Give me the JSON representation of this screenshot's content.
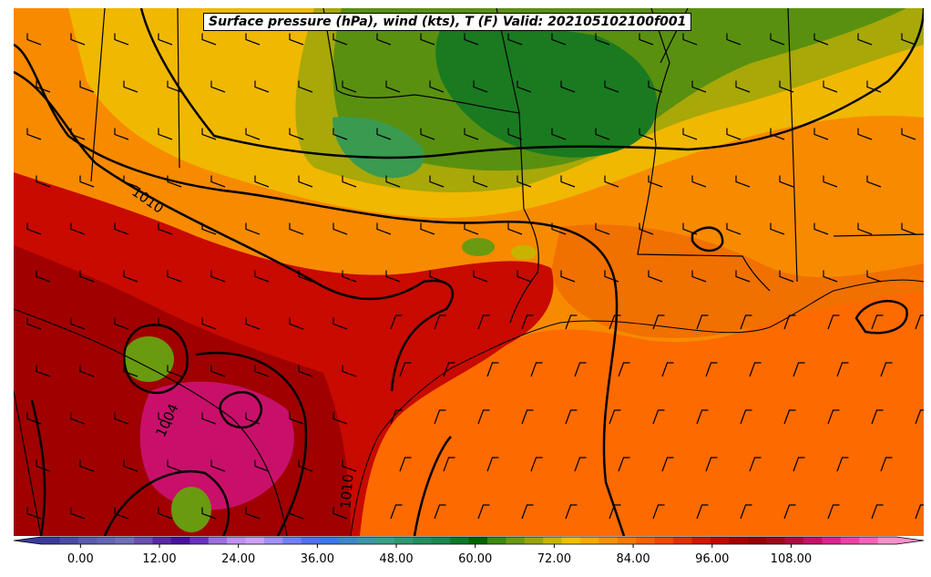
{
  "title": "Surface pressure (hPa), wind (kts), T (F) Valid: 202105102100f001",
  "isobar_labels": [
    "1010",
    "1004",
    "1010"
  ],
  "colorbar": {
    "ticks": [
      "0.00",
      "12.00",
      "24.00",
      "36.00",
      "48.00",
      "60.00",
      "72.00",
      "84.00",
      "96.00",
      "108.00"
    ],
    "tick_values": [
      0,
      12,
      24,
      36,
      48,
      60,
      72,
      84,
      96,
      108
    ],
    "min": -6,
    "max": 124,
    "step": 3,
    "colors": [
      "#3a3a9c",
      "#4a4aa8",
      "#5a5ab0",
      "#6464b4",
      "#7070b8",
      "#6a50b0",
      "#5a28a8",
      "#4a10a0",
      "#6a30c0",
      "#9a70e0",
      "#c090f0",
      "#d0a0f8",
      "#a090f8",
      "#7080f8",
      "#5070f0",
      "#3878f0",
      "#3a88c8",
      "#3a98a8",
      "#38a088",
      "#2a9a70",
      "#209060",
      "#188850",
      "#0a7a28",
      "#006400",
      "#3a8a10",
      "#6a9a10",
      "#9aa408",
      "#c8b400",
      "#f0c000",
      "#f8a800",
      "#f89000",
      "#f87800",
      "#f86000",
      "#f04800",
      "#e03000",
      "#d01800",
      "#c00800",
      "#a80000",
      "#980000",
      "#a00818",
      "#b00a40",
      "#c8106a",
      "#e02090",
      "#f040a8",
      "#f860b8",
      "#f890c8"
    ]
  },
  "colors": {
    "background": "#e87400",
    "ocean": "#fc6a00",
    "contour": "#000000"
  }
}
